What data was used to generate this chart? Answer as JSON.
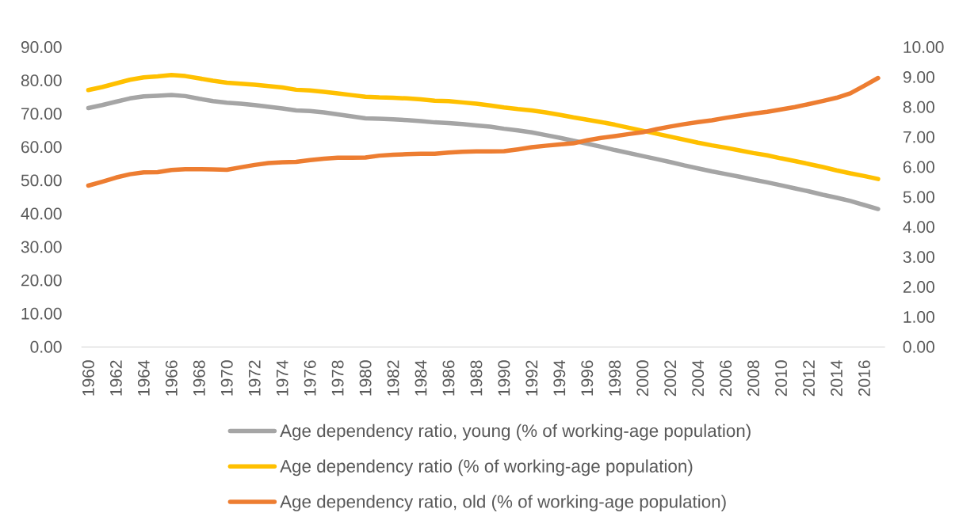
{
  "chart_data": {
    "type": "line",
    "categories": [
      "1960",
      null,
      "1962",
      null,
      "1964",
      null,
      "1966",
      null,
      "1968",
      null,
      "1970",
      null,
      "1972",
      null,
      "1974",
      null,
      "1976",
      null,
      "1978",
      null,
      "1980",
      null,
      "1982",
      null,
      "1984",
      null,
      "1986",
      null,
      "1988",
      null,
      "1990",
      null,
      "1992",
      null,
      "1994",
      null,
      "1996",
      null,
      "1998",
      null,
      "2000",
      null,
      "2002",
      null,
      "2004",
      null,
      "2006",
      null,
      "2008",
      null,
      "2010",
      null,
      "2012",
      null,
      "2014",
      null,
      "2016",
      null
    ],
    "ylim": [
      0,
      90
    ],
    "yticks": [
      {
        "value": 0,
        "label": "0.00"
      },
      {
        "value": 10,
        "label": "10.00"
      },
      {
        "value": 20,
        "label": "20.00"
      },
      {
        "value": 30,
        "label": "30.00"
      },
      {
        "value": 40,
        "label": "40.00"
      },
      {
        "value": 50,
        "label": "50.00"
      },
      {
        "value": 60,
        "label": "60.00"
      },
      {
        "value": 70,
        "label": "70.00"
      },
      {
        "value": 80,
        "label": "80.00"
      },
      {
        "value": 90,
        "label": "90.00"
      }
    ],
    "y2lim": [
      0,
      10
    ],
    "y2ticks": [
      {
        "value": 0,
        "label": "0.00"
      },
      {
        "value": 1,
        "label": "1.00"
      },
      {
        "value": 2,
        "label": "2.00"
      },
      {
        "value": 3,
        "label": "3.00"
      },
      {
        "value": 4,
        "label": "4.00"
      },
      {
        "value": 5,
        "label": "5.00"
      },
      {
        "value": 6,
        "label": "6.00"
      },
      {
        "value": 7,
        "label": "7.00"
      },
      {
        "value": 8,
        "label": "8.00"
      },
      {
        "value": 9,
        "label": "9.00"
      },
      {
        "value": 10,
        "label": "10.00"
      }
    ],
    "series": [
      {
        "name": "Age dependency ratio, young (% of working-age population)",
        "color": "#a5a5a5",
        "values": [
          71.7,
          72.6,
          73.6,
          74.6,
          75.2,
          75.4,
          75.6,
          75.3,
          74.5,
          73.8,
          73.3,
          73.0,
          72.6,
          72.1,
          71.6,
          71.0,
          70.8,
          70.4,
          69.8,
          69.2,
          68.6,
          68.5,
          68.3,
          68.1,
          67.8,
          67.4,
          67.2,
          66.9,
          66.5,
          66.1,
          65.5,
          65.0,
          64.4,
          63.6,
          62.8,
          61.9,
          61.0,
          60.1,
          59.1,
          58.2,
          57.3,
          56.4,
          55.5,
          54.5,
          53.6,
          52.7,
          51.9,
          51.1,
          50.2,
          49.4,
          48.5,
          47.6,
          46.7,
          45.7,
          44.8,
          43.8,
          42.6,
          41.4
        ]
      },
      {
        "name": "Age dependency ratio (% of working-age population)",
        "color": "#ffc000",
        "values": [
          77.1,
          78.0,
          79.1,
          80.2,
          80.9,
          81.2,
          81.6,
          81.3,
          80.6,
          79.9,
          79.3,
          79.0,
          78.7,
          78.3,
          77.9,
          77.2,
          77.0,
          76.6,
          76.1,
          75.6,
          75.1,
          74.9,
          74.8,
          74.6,
          74.3,
          73.9,
          73.8,
          73.4,
          73.0,
          72.5,
          71.9,
          71.4,
          71.0,
          70.4,
          69.7,
          68.9,
          68.2,
          67.5,
          66.7,
          65.8,
          64.9,
          64.0,
          63.1,
          62.2,
          61.3,
          60.5,
          59.8,
          59.0,
          58.2,
          57.5,
          56.6,
          55.8,
          54.9,
          54.0,
          53.0,
          52.1,
          51.3,
          50.4
        ]
      },
      {
        "name": "Age dependency ratio, old (% of working-age population)",
        "color": "#ed7d31",
        "axis": "y2",
        "values": [
          5.38,
          5.51,
          5.65,
          5.76,
          5.82,
          5.83,
          5.9,
          5.93,
          5.93,
          5.92,
          5.91,
          5.99,
          6.07,
          6.13,
          6.16,
          6.17,
          6.23,
          6.28,
          6.31,
          6.31,
          6.32,
          6.38,
          6.41,
          6.43,
          6.44,
          6.44,
          6.48,
          6.51,
          6.52,
          6.52,
          6.53,
          6.59,
          6.66,
          6.71,
          6.75,
          6.79,
          6.89,
          6.97,
          7.03,
          7.1,
          7.16,
          7.26,
          7.35,
          7.43,
          7.5,
          7.56,
          7.64,
          7.71,
          7.78,
          7.84,
          7.92,
          8.0,
          8.1,
          8.2,
          8.31,
          8.46,
          8.71,
          8.97
        ]
      }
    ],
    "legend": "bottom",
    "line_style": "solid"
  }
}
